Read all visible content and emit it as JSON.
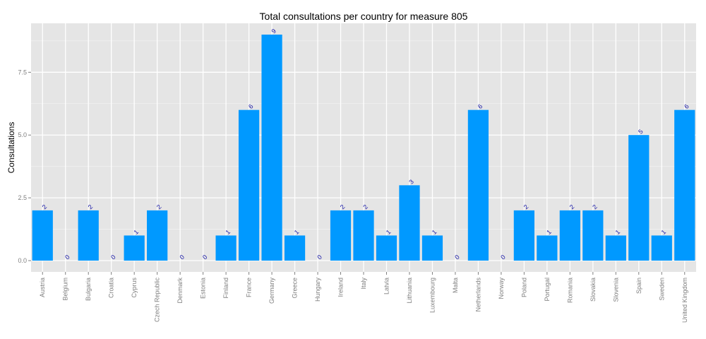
{
  "chart_data": {
    "type": "bar",
    "title": "Total consultations per country for measure 805",
    "xlabel": "",
    "ylabel": "Consultations",
    "categories": [
      "Austria",
      "Belgium",
      "Bulgaria",
      "Croatia",
      "Cyprus",
      "Czech Republic",
      "Denmark",
      "Estonia",
      "Finland",
      "France",
      "Germany",
      "Greece",
      "Hungary",
      "Ireland",
      "Italy",
      "Latvia",
      "Lithuania",
      "Luxembourg",
      "Malta",
      "Netherlands",
      "Norway",
      "Poland",
      "Portugal",
      "Romania",
      "Slovakia",
      "Slovenia",
      "Spain",
      "Sweden",
      "United Kingdom"
    ],
    "values": [
      2,
      0,
      2,
      0,
      1,
      2,
      0,
      0,
      1,
      6,
      9,
      1,
      0,
      2,
      2,
      1,
      3,
      1,
      0,
      6,
      0,
      2,
      1,
      2,
      2,
      1,
      5,
      1,
      6
    ],
    "ylim": [
      -0.45,
      9.45
    ],
    "yticks": [
      0,
      2.5,
      5,
      7.5
    ],
    "ytick_labels": [
      "0.0",
      "2.5",
      "5.0",
      "7.5"
    ],
    "grid": true,
    "colors": {
      "bar": "#0099ff",
      "panel": "#e5e5e5",
      "grid_major": "#ffffff",
      "grid_minor": "#f2f2f2",
      "data_label": "#1a1aa8",
      "tick_text": "#7f7f7f"
    }
  }
}
